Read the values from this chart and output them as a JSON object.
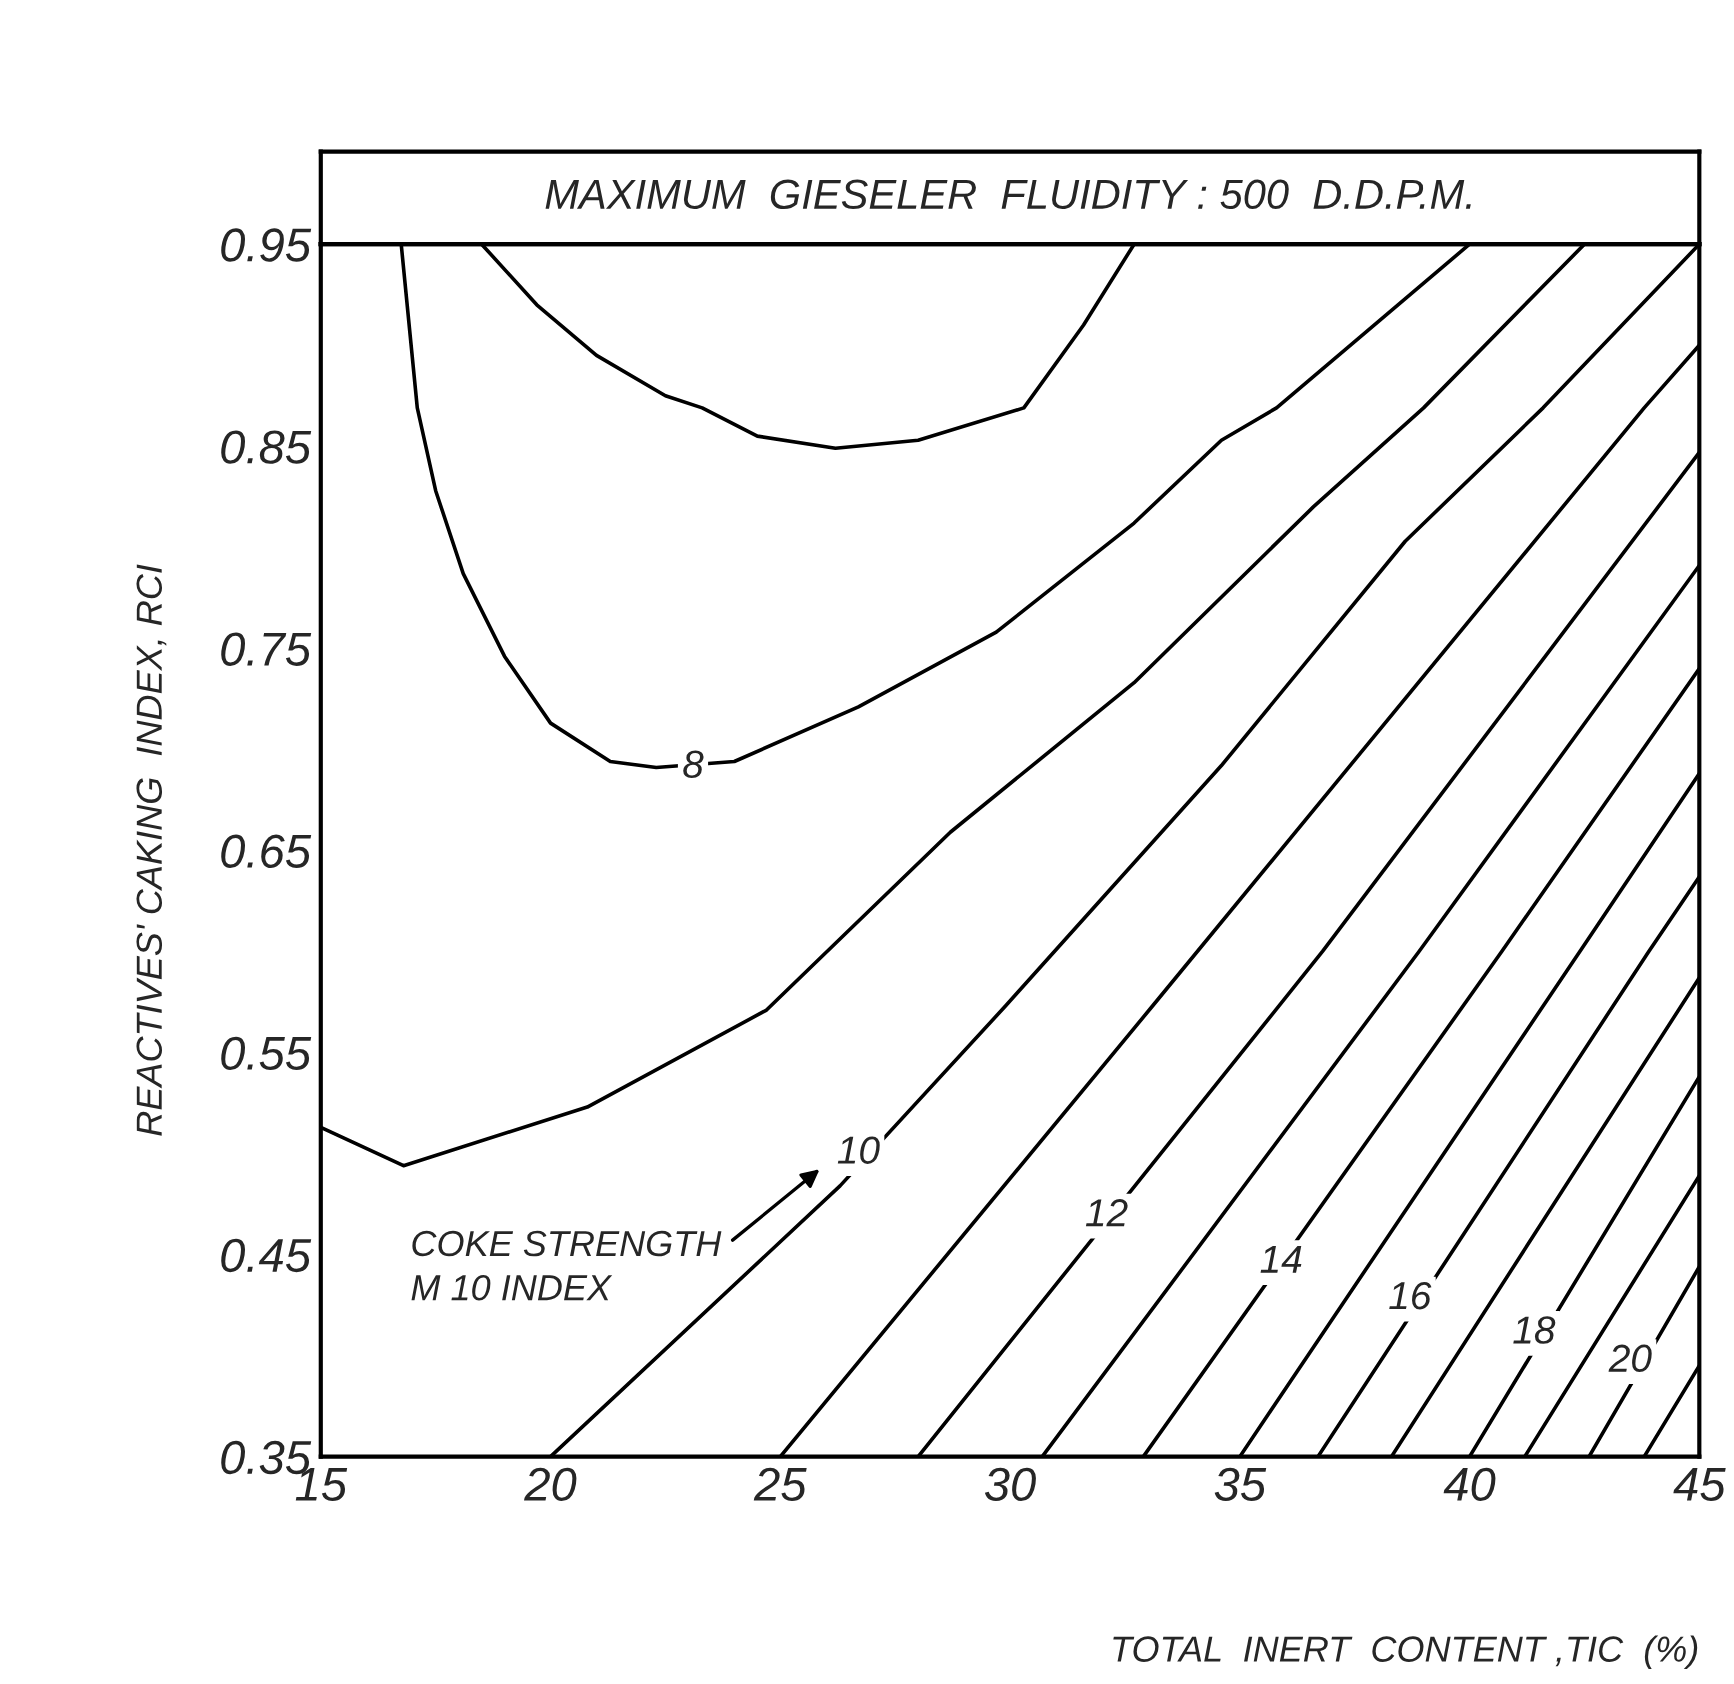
{
  "chart_data": {
    "type": "line",
    "title": "MAXIMUM  GIESELER  FLUIDITY : 500  D.D.P.M.",
    "xlabel": "TOTAL  INERT  CONTENT ,TIC  (%)",
    "ylabel": "REACTIVES' CAKING  INDEX, RCI",
    "xlim": [
      15,
      45
    ],
    "ylim": [
      0.35,
      0.95
    ],
    "xticks": [
      15,
      20,
      25,
      30,
      35,
      40,
      45
    ],
    "yticks": [
      {
        "value": 0.35,
        "label": "0.35"
      },
      {
        "value": 0.45,
        "label": "0.45"
      },
      {
        "value": 0.55,
        "label": "0.55"
      },
      {
        "value": 0.65,
        "label": "0.65"
      },
      {
        "value": 0.75,
        "label": "0.75"
      },
      {
        "value": 0.85,
        "label": "0.85"
      },
      {
        "value": 0.95,
        "label": "0.95"
      }
    ],
    "grid": false,
    "legend": false,
    "marker": "none",
    "line_style": "solid",
    "series": [
      {
        "color": "#000000",
        "x": [
          18.5,
          19.7,
          21,
          22.5,
          23.3,
          24.5,
          26.2,
          28,
          30.3,
          31.6,
          32.7
        ],
        "values": [
          0.95,
          0.92,
          0.895,
          0.875,
          0.869,
          0.855,
          0.849,
          0.853,
          0.869,
          0.91,
          0.95
        ]
      },
      {
        "color": "#000000",
        "x": [
          16.75,
          17.1,
          17.5,
          18.1,
          19.0,
          20.0,
          21.3,
          22.3,
          24.0,
          26.7,
          29.7,
          32.7,
          34.6,
          35.8,
          40.0
        ],
        "values": [
          0.95,
          0.869,
          0.828,
          0.787,
          0.746,
          0.713,
          0.694,
          0.691,
          0.694,
          0.721,
          0.758,
          0.812,
          0.853,
          0.869,
          0.95
        ]
      },
      {
        "color": "#000000",
        "x": [
          15,
          16.8,
          20.8,
          24.7,
          28.7,
          32.7,
          36.6,
          39.0,
          42.5
        ],
        "values": [
          0.513,
          0.494,
          0.523,
          0.571,
          0.659,
          0.733,
          0.82,
          0.869,
          0.95
        ]
      },
      {
        "color": "#000000",
        "x": [
          20,
          26.3,
          29.9,
          34.6,
          38.6,
          41.6,
          45
        ],
        "values": [
          0.35,
          0.484,
          0.573,
          0.692,
          0.803,
          0.869,
          0.95
        ]
      },
      {
        "color": "#000000",
        "x": [
          25,
          33.1,
          43.8,
          45
        ],
        "values": [
          0.35,
          0.573,
          0.869,
          0.9
        ]
      },
      {
        "color": "#000000",
        "x": [
          28,
          36.8,
          45
        ],
        "values": [
          0.35,
          0.6,
          0.847
        ]
      },
      {
        "color": "#000000",
        "x": [
          30.7,
          38.9,
          45
        ],
        "values": [
          0.35,
          0.6,
          0.791
        ]
      },
      {
        "color": "#000000",
        "x": [
          32.9,
          40.7,
          45
        ],
        "values": [
          0.35,
          0.6,
          0.74
        ]
      },
      {
        "color": "#000000",
        "x": [
          35.0,
          42.4,
          45
        ],
        "values": [
          0.35,
          0.6,
          0.688
        ]
      },
      {
        "color": "#000000",
        "x": [
          36.7,
          43.9,
          45
        ],
        "values": [
          0.35,
          0.6,
          0.637
        ]
      },
      {
        "color": "#000000",
        "x": [
          38.3,
          45
        ],
        "values": [
          0.35,
          0.587
        ]
      },
      {
        "color": "#000000",
        "x": [
          40.0,
          45
        ],
        "values": [
          0.35,
          0.538
        ]
      },
      {
        "color": "#000000",
        "x": [
          41.2,
          45
        ],
        "values": [
          0.35,
          0.489
        ]
      },
      {
        "color": "#000000",
        "x": [
          42.6,
          45
        ],
        "values": [
          0.35,
          0.444
        ]
      },
      {
        "color": "#000000",
        "x": [
          43.8,
          45
        ],
        "values": [
          0.35,
          0.395
        ]
      }
    ],
    "annotations": [
      {
        "text": "8",
        "x": 23.1,
        "y": 0.691
      },
      {
        "text": "10",
        "x": 26.7,
        "y": 0.5
      },
      {
        "text": "12",
        "x": 32.1,
        "y": 0.469
      },
      {
        "text": "14",
        "x": 35.9,
        "y": 0.446
      },
      {
        "text": "16",
        "x": 38.7,
        "y": 0.428
      },
      {
        "text": "18",
        "x": 41.4,
        "y": 0.411
      },
      {
        "text": "20",
        "x": 43.5,
        "y": 0.397
      },
      "COKE STRENGTH\nM 10 INDEX"
    ]
  }
}
